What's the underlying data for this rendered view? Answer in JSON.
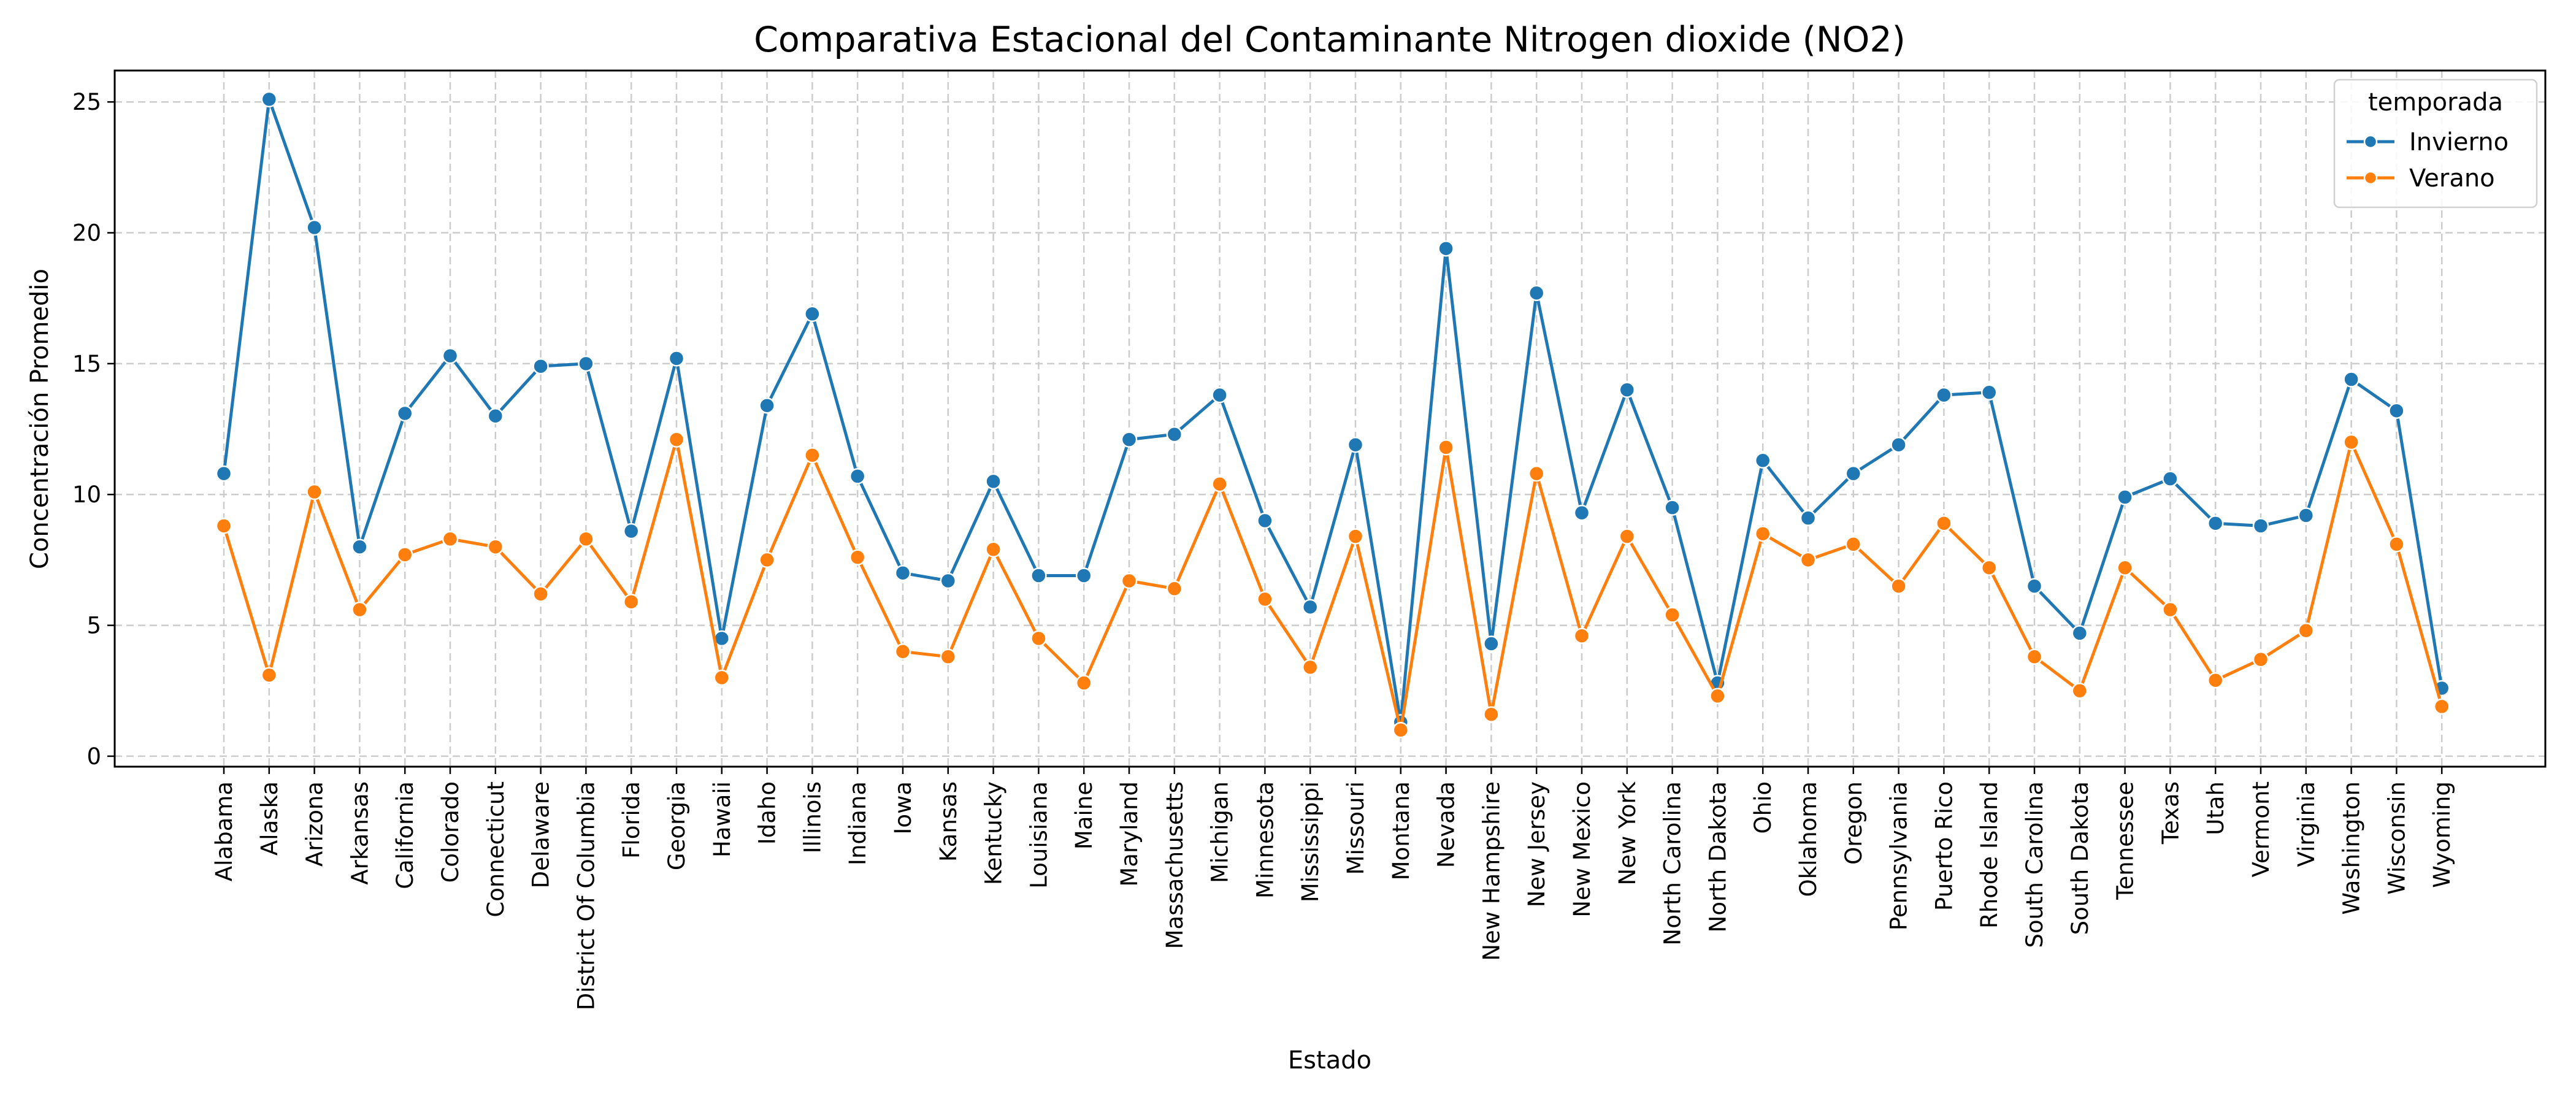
{
  "chart_data": {
    "type": "line",
    "title": "Comparativa Estacional del Contaminante Nitrogen dioxide (NO2)",
    "xlabel": "Estado",
    "ylabel": "Concentración Promedio",
    "ylim": [
      -0.4,
      26.2
    ],
    "yticks": [
      0,
      5,
      10,
      15,
      20,
      25
    ],
    "grid": true,
    "legend": {
      "title": "temporada",
      "position": "top-right"
    },
    "categories": [
      "Alabama",
      "Alaska",
      "Arizona",
      "Arkansas",
      "California",
      "Colorado",
      "Connecticut",
      "Delaware",
      "District Of Columbia",
      "Florida",
      "Georgia",
      "Hawaii",
      "Idaho",
      "Illinois",
      "Indiana",
      "Iowa",
      "Kansas",
      "Kentucky",
      "Louisiana",
      "Maine",
      "Maryland",
      "Massachusetts",
      "Michigan",
      "Minnesota",
      "Mississippi",
      "Missouri",
      "Montana",
      "Nevada",
      "New Hampshire",
      "New Jersey",
      "New Mexico",
      "New York",
      "North Carolina",
      "North Dakota",
      "Ohio",
      "Oklahoma",
      "Oregon",
      "Pennsylvania",
      "Puerto Rico",
      "Rhode Island",
      "South Carolina",
      "South Dakota",
      "Tennessee",
      "Texas",
      "Utah",
      "Vermont",
      "Virginia",
      "Washington",
      "Wisconsin",
      "Wyoming"
    ],
    "series": [
      {
        "name": "Invierno",
        "color": "#1f77b4",
        "values": [
          10.8,
          25.1,
          20.2,
          8.0,
          13.1,
          15.3,
          13.0,
          14.9,
          15.0,
          8.6,
          15.2,
          4.5,
          13.4,
          16.9,
          10.7,
          7.0,
          6.7,
          10.5,
          6.9,
          6.9,
          12.1,
          12.3,
          13.8,
          9.0,
          5.7,
          11.9,
          1.3,
          19.4,
          4.3,
          17.7,
          9.3,
          14.0,
          9.5,
          2.8,
          11.3,
          9.1,
          10.8,
          11.9,
          13.8,
          13.9,
          6.5,
          4.7,
          9.9,
          10.6,
          8.9,
          8.8,
          9.2,
          14.4,
          13.2,
          2.6
        ]
      },
      {
        "name": "Verano",
        "color": "#ff7f0e",
        "values": [
          8.8,
          3.1,
          10.1,
          5.6,
          7.7,
          8.3,
          8.0,
          6.2,
          8.3,
          5.9,
          12.1,
          3.0,
          7.5,
          11.5,
          7.6,
          4.0,
          3.8,
          7.9,
          4.5,
          2.8,
          6.7,
          6.4,
          10.4,
          6.0,
          3.4,
          8.4,
          1.0,
          11.8,
          1.6,
          10.8,
          4.6,
          8.4,
          5.4,
          2.3,
          8.5,
          7.5,
          8.1,
          6.5,
          8.9,
          7.2,
          3.8,
          2.5,
          7.2,
          5.6,
          2.9,
          3.7,
          4.8,
          12.0,
          8.1,
          1.9
        ]
      }
    ]
  }
}
